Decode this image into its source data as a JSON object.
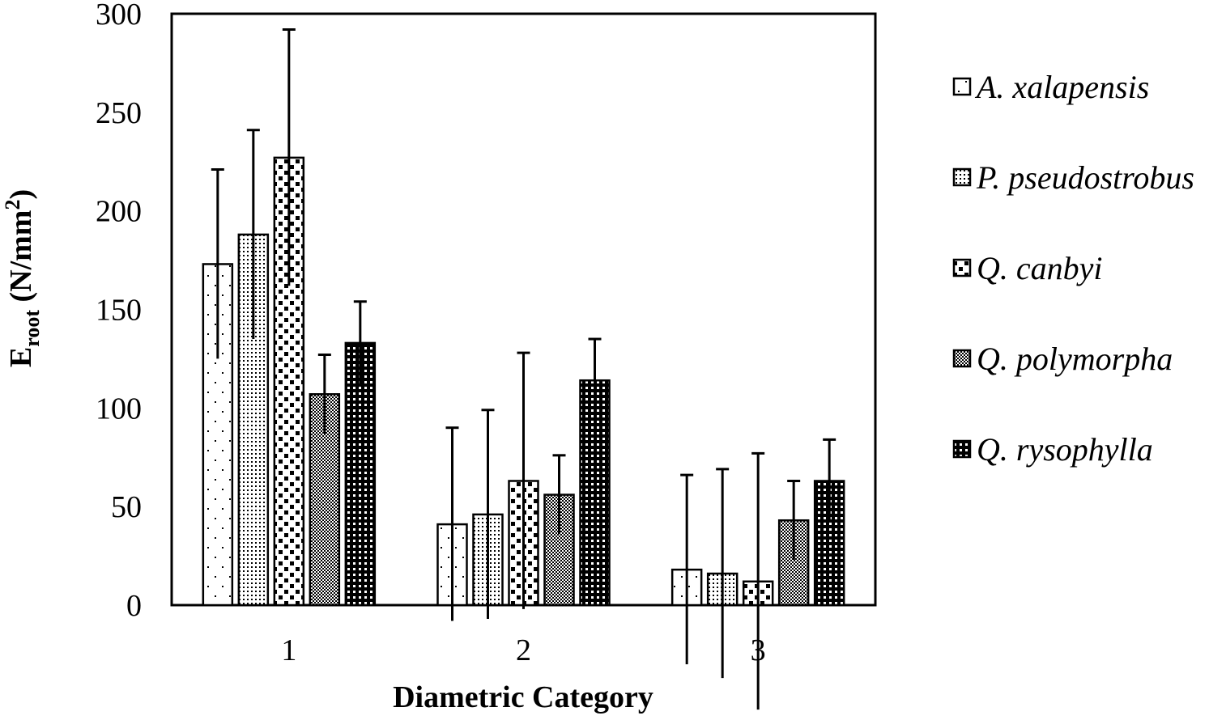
{
  "chart_data": {
    "type": "bar",
    "xlabel": "Diametric Category",
    "ylabel": {
      "main": "E",
      "subscript": "root",
      "units_prefix": " (N/mm",
      "units_superscript": "2",
      "units_suffix": ")"
    },
    "ylim": [
      0,
      300
    ],
    "yticks": [
      "0",
      "50",
      "100",
      "150",
      "200",
      "250",
      "300"
    ],
    "categories": [
      "1",
      "2",
      "3"
    ],
    "grid": false,
    "legend_position": "right",
    "series": [
      {
        "name": "A. xalapensis",
        "pattern": "sparse-dots",
        "values": [
          173,
          41,
          18
        ],
        "error": [
          48,
          49,
          48
        ]
      },
      {
        "name": "P. pseudostrobus",
        "pattern": "fine-grid",
        "values": [
          188,
          46,
          16
        ],
        "error": [
          53,
          53,
          53
        ]
      },
      {
        "name": "Q. canbyi",
        "pattern": "large-squares",
        "values": [
          227,
          63,
          12
        ],
        "error": [
          65,
          65,
          65
        ]
      },
      {
        "name": "Q. polymorpha",
        "pattern": "checker",
        "values": [
          107,
          56,
          43
        ],
        "error": [
          20,
          20,
          20
        ]
      },
      {
        "name": "Q. rysophylla",
        "pattern": "dark-dots",
        "values": [
          133,
          114,
          63
        ],
        "error": [
          21,
          21,
          21
        ]
      }
    ]
  }
}
